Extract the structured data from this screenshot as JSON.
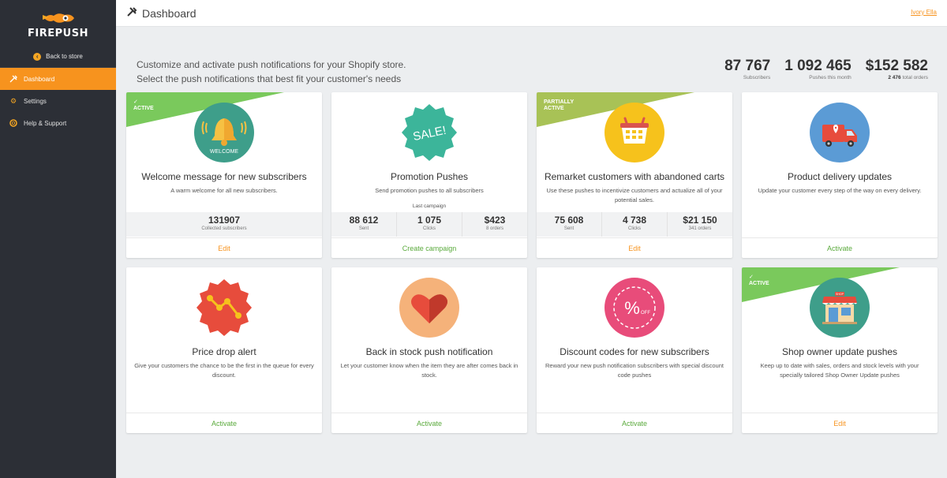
{
  "sidebar": {
    "logo_text": "FIREPUSH",
    "back_label": "Back to store",
    "items": [
      {
        "label": "Dashboard",
        "icon": "tools-icon",
        "active": true
      },
      {
        "label": "Settings",
        "icon": "gear-icon",
        "active": false
      },
      {
        "label": "Help & Support",
        "icon": "lifebuoy-icon",
        "active": false
      }
    ]
  },
  "header": {
    "title": "Dashboard",
    "user": "Ivory Ella"
  },
  "intro": {
    "line1": "Customize and activate push notifications for your Shopify store.",
    "line2": "Select the push notifications that best fit your customer's needs"
  },
  "stats": [
    {
      "value": "87 767",
      "label": "Subscribers"
    },
    {
      "value": "1 092 465",
      "label": "Pushes this month"
    },
    {
      "value": "$152 582",
      "label_bold": "2 476",
      "label": " total orders"
    }
  ],
  "cards": [
    {
      "title": "Welcome message for new subscribers",
      "desc": "A warm welcome for all new subscribers.",
      "badge": "ACTIVE",
      "icon_text": "WELCOME",
      "single_metric": {
        "value": "131907",
        "label": "Collected subscribers"
      },
      "footer": "Edit"
    },
    {
      "title": "Promotion Pushes",
      "desc": "Send promotion pushes to all subscribers",
      "icon_text": "SALE!",
      "campaign_label": "Last campaign",
      "metrics": [
        {
          "value": "88 612",
          "label": "Sent"
        },
        {
          "value": "1 075",
          "label": "Clicks"
        },
        {
          "value": "$423",
          "label": "8 orders"
        }
      ],
      "footer": "Create campaign"
    },
    {
      "title": "Remarket customers with abandoned carts",
      "desc": "Use these pushes to incentivize customers and actualize all of your potential sales.",
      "badge_line1": "PARTIALLY",
      "badge_line2": "ACTIVE",
      "metrics": [
        {
          "value": "75 608",
          "label": "Sent"
        },
        {
          "value": "4 738",
          "label": "Clicks"
        },
        {
          "value": "$21 150",
          "label": "341 orders"
        }
      ],
      "footer": "Edit"
    },
    {
      "title": "Product delivery updates",
      "desc": "Update your customer every step of the way on every delivery.",
      "footer": "Activate"
    },
    {
      "title": "Price drop alert",
      "desc": "Give your customers the chance to be the first in the queue for every discount.",
      "footer": "Activate"
    },
    {
      "title": "Back in stock push notification",
      "desc": "Let your customer know when the item they are after comes back in stock.",
      "footer": "Activate"
    },
    {
      "title": "Discount codes for new subscribers",
      "desc": "Reward your new push notification subscribers with special discount code pushes",
      "icon_text": "%",
      "icon_sub": "OFF",
      "footer": "Activate"
    },
    {
      "title": "Shop owner update pushes",
      "desc": "Keep up to date with sales, orders and stock levels with your specially tailored Shop Owner Update pushes",
      "badge": "ACTIVE",
      "icon_text": "SHOP",
      "footer": "Edit"
    }
  ],
  "colors": {
    "accent": "#f7931e",
    "sidebar": "#2c2f36",
    "active_green": "#7ac95c",
    "activate_text": "#5aaa3c"
  }
}
